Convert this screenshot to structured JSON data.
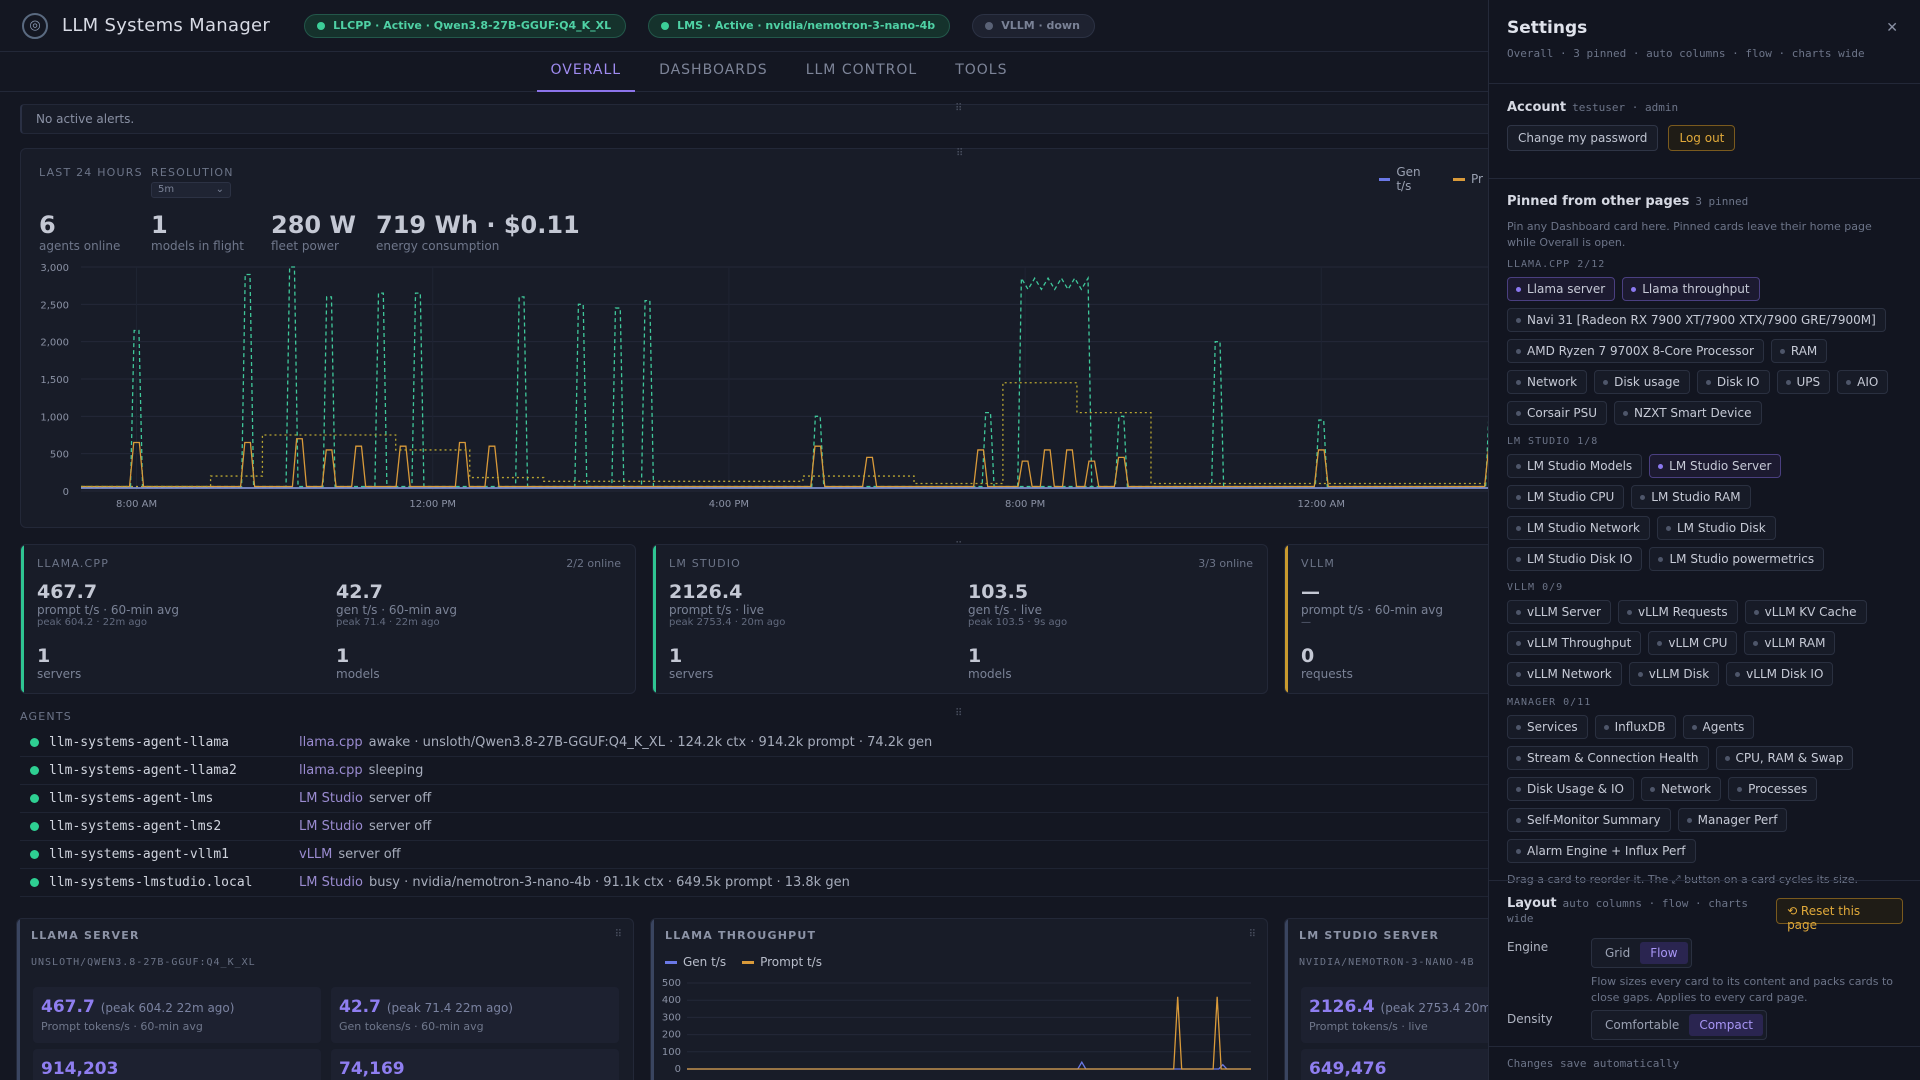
{
  "app": {
    "title": "LLM Systems Manager"
  },
  "status_pills": [
    {
      "label": "LLCPP · Active · Qwen3.8-27B-GGUF:Q4_K_XL",
      "state": "active"
    },
    {
      "label": "LMS · Active · nvidia/nemotron-3-nano-4b",
      "state": "active"
    },
    {
      "label": "VLLM · down",
      "state": "down"
    }
  ],
  "tabs": [
    "OVERALL",
    "DASHBOARDS",
    "LLM CONTROL",
    "TOOLS"
  ],
  "alerts": {
    "text": "No active alerts."
  },
  "overview": {
    "range_label": "LAST 24 HOURS",
    "resolution_label": "RESOLUTION",
    "resolution_value": "5m",
    "stats": [
      {
        "value": "6",
        "label": "agents online"
      },
      {
        "value": "1",
        "label": "models in flight"
      },
      {
        "value": "280 W",
        "label": "fleet power"
      },
      {
        "value": "719 Wh · $0.11",
        "label": "energy consumption"
      }
    ],
    "legend": [
      "Gen t/s",
      "Pr"
    ]
  },
  "chart_data": [
    {
      "type": "line",
      "title": "",
      "xlabel": "",
      "ylabel": "",
      "ylim": [
        0,
        3000
      ],
      "yticks": [
        "0",
        "500",
        "1,000",
        "1,500",
        "2,000",
        "2,500",
        "3,000"
      ],
      "xticks": [
        "8:00 AM",
        "12:00 PM",
        "4:00 PM",
        "8:00 PM",
        "12:00 AM"
      ],
      "xtick_hours": [
        8,
        12,
        16,
        20,
        24
      ],
      "x_range_hours": [
        7.25,
        26.4
      ],
      "grid": true,
      "series": [
        {
          "name": "Gen t/s",
          "color": "#3fc79a",
          "style": "dashed",
          "spikes": [
            [
              8.0,
              2150
            ],
            [
              9.5,
              2900
            ],
            [
              10.1,
              3000
            ],
            [
              10.6,
              2600
            ],
            [
              11.3,
              2650
            ],
            [
              11.8,
              2650
            ],
            [
              13.2,
              2600
            ],
            [
              14.0,
              2500
            ],
            [
              14.5,
              2450
            ],
            [
              14.9,
              2550
            ],
            [
              17.2,
              1000
            ],
            [
              19.5,
              1050
            ],
            [
              21.3,
              1000
            ],
            [
              22.6,
              2000
            ],
            [
              24.0,
              950
            ],
            [
              26.3,
              1100
            ]
          ],
          "plateau": {
            "start": 19.9,
            "end": 20.9,
            "level": 2850
          }
        },
        {
          "name": "Prompt t/s",
          "color": "#d99a3a",
          "style": "solid",
          "spikes": [
            [
              8.0,
              650
            ],
            [
              9.5,
              650
            ],
            [
              10.2,
              700
            ],
            [
              10.6,
              550
            ],
            [
              11.0,
              600
            ],
            [
              11.6,
              600
            ],
            [
              12.4,
              650
            ],
            [
              12.8,
              600
            ],
            [
              17.2,
              600
            ],
            [
              17.9,
              450
            ],
            [
              19.4,
              550
            ],
            [
              20.0,
              400
            ],
            [
              20.3,
              550
            ],
            [
              20.6,
              550
            ],
            [
              20.9,
              400
            ],
            [
              21.3,
              450
            ],
            [
              24.0,
              550
            ],
            [
              26.3,
              600
            ]
          ]
        },
        {
          "name": "Power",
          "color": "#b7a431",
          "style": "dotted",
          "steps": [
            [
              7.25,
              60
            ],
            [
              9.0,
              60
            ],
            [
              9.0,
              200
            ],
            [
              9.7,
              200
            ],
            [
              9.7,
              750
            ],
            [
              11.5,
              750
            ],
            [
              11.5,
              550
            ],
            [
              12.5,
              550
            ],
            [
              12.5,
              180
            ],
            [
              13.5,
              180
            ],
            [
              13.5,
              130
            ],
            [
              17.0,
              130
            ],
            [
              17.0,
              200
            ],
            [
              18.5,
              200
            ],
            [
              18.5,
              100
            ],
            [
              19.7,
              100
            ],
            [
              19.7,
              1450
            ],
            [
              20.7,
              1450
            ],
            [
              20.7,
              1050
            ],
            [
              21.7,
              1050
            ],
            [
              21.7,
              100
            ],
            [
              26.4,
              100
            ]
          ]
        },
        {
          "name": "Base",
          "color": "#8fa2e8",
          "style": "solid",
          "level": 40
        }
      ]
    },
    {
      "type": "line",
      "title": "",
      "ylim": [
        0,
        500
      ],
      "yticks": [
        "0",
        "100",
        "200",
        "300",
        "400",
        "500"
      ],
      "series": [
        {
          "name": "Gen t/s",
          "color": "#6a78e6",
          "spikes": [
            [
              0.7,
              40
            ],
            [
              0.95,
              25
            ]
          ]
        },
        {
          "name": "Prompt t/s",
          "color": "#d99a3a",
          "spikes": [
            [
              0.87,
              420
            ],
            [
              0.94,
              420
            ]
          ]
        }
      ]
    }
  ],
  "services": [
    {
      "name": "LLAMA.CPP",
      "online": "2/2 online",
      "color": "#2fc592",
      "m1": {
        "value": "467.7",
        "label": "prompt t/s · 60-min avg",
        "peak": "peak 604.2 · 22m ago"
      },
      "m2": {
        "value": "42.7",
        "label": "gen t/s · 60-min avg",
        "peak": "peak 71.4 · 22m ago"
      },
      "c1": {
        "value": "1",
        "label": "servers"
      },
      "c2": {
        "value": "1",
        "label": "models"
      }
    },
    {
      "name": "LM STUDIO",
      "online": "3/3 online",
      "color": "#2fc592",
      "m1": {
        "value": "2126.4",
        "label": "prompt t/s · live",
        "peak": "peak 2753.4 · 20m ago"
      },
      "m2": {
        "value": "103.5",
        "label": "gen t/s · live",
        "peak": "peak 103.5 · 9s ago"
      },
      "c1": {
        "value": "1",
        "label": "servers"
      },
      "c2": {
        "value": "1",
        "label": "models"
      }
    },
    {
      "name": "VLLM",
      "online": "",
      "color": "#c99a2e",
      "m1": {
        "value": "—",
        "label": "prompt t/s · 60-min avg",
        "peak": "—"
      },
      "c1": {
        "value": "0",
        "label": "requests"
      }
    }
  ],
  "agents_label": "AGENTS",
  "agents": [
    {
      "name": "llm-systems-agent-llama",
      "svc": "llama.cpp",
      "detail": "awake · unsloth/Qwen3.8-27B-GGUF:Q4_K_XL · 124.2k ctx · 914.2k prompt · 74.2k gen"
    },
    {
      "name": "llm-systems-agent-llama2",
      "svc": "llama.cpp",
      "detail": "sleeping"
    },
    {
      "name": "llm-systems-agent-lms",
      "svc": "LM Studio",
      "detail": "server off"
    },
    {
      "name": "llm-systems-agent-lms2",
      "svc": "LM Studio",
      "detail": "server off"
    },
    {
      "name": "llm-systems-agent-vllm1",
      "svc": "vLLM",
      "detail": "server off"
    },
    {
      "name": "llm-systems-lmstudio.local",
      "svc": "LM Studio",
      "detail": "busy · nvidia/nemotron-3-nano-4b · 91.1k ctx · 649.5k prompt · 13.8k gen"
    }
  ],
  "bottom": {
    "llama_server": {
      "title": "LLAMA SERVER",
      "model": "UNSLOTH/QWEN3.8-27B-GGUF:Q4_K_XL",
      "t1": {
        "value": "467.7",
        "extra": "(peak 604.2 22m ago)",
        "label": "Prompt tokens/s · 60-min avg"
      },
      "t2": {
        "value": "42.7",
        "extra": "(peak 71.4 22m ago)",
        "label": "Gen tokens/s · 60-min avg"
      },
      "t3": "914,203",
      "t4": "74,169"
    },
    "llama_throughput": {
      "title": "LLAMA THROUGHPUT",
      "legend": [
        "Gen t/s",
        "Prompt t/s"
      ]
    },
    "lms_server": {
      "title": "LM STUDIO SERVER",
      "model": "NVIDIA/NEMOTRON-3-NANO-4B",
      "t1": {
        "value": "2126.4",
        "extra": "(peak 2753.4 20m ago)",
        "label": "Prompt tokens/s · live"
      },
      "t3": "649,476"
    }
  },
  "settings": {
    "title": "Settings",
    "subtitle": "Overall · 3 pinned · auto columns · flow · charts wide",
    "account_label": "Account",
    "account_user": "testuser · admin",
    "change_pw": "Change my password",
    "logout": "Log out",
    "pinned_title": "Pinned from other pages",
    "pinned_count": "3 pinned",
    "pinned_note": "Pin any Dashboard card here. Pinned cards leave their home page while Overall is open.",
    "groups": [
      {
        "label": "LLAMA.CPP  2/12",
        "chips": [
          {
            "t": "Llama server",
            "p": true
          },
          {
            "t": "Llama throughput",
            "p": true
          },
          {
            "t": "Navi 31 [Radeon RX 7900 XT/7900 XTX/7900 GRE/7900M]"
          },
          {
            "t": "AMD Ryzen 7 9700X 8-Core Processor"
          },
          {
            "t": "RAM"
          },
          {
            "t": "Network"
          },
          {
            "t": "Disk usage"
          },
          {
            "t": "Disk IO"
          },
          {
            "t": "UPS"
          },
          {
            "t": "AIO"
          },
          {
            "t": "Corsair PSU"
          },
          {
            "t": "NZXT Smart Device"
          }
        ]
      },
      {
        "label": "LM STUDIO  1/8",
        "chips": [
          {
            "t": "LM Studio Models"
          },
          {
            "t": "LM Studio Server",
            "p": true
          },
          {
            "t": "LM Studio CPU"
          },
          {
            "t": "LM Studio RAM"
          },
          {
            "t": "LM Studio Network"
          },
          {
            "t": "LM Studio Disk"
          },
          {
            "t": "LM Studio Disk IO"
          },
          {
            "t": "LM Studio powermetrics"
          }
        ]
      },
      {
        "label": "VLLM  0/9",
        "chips": [
          {
            "t": "vLLM Server"
          },
          {
            "t": "vLLM Requests"
          },
          {
            "t": "vLLM KV Cache"
          },
          {
            "t": "vLLM Throughput"
          },
          {
            "t": "vLLM CPU"
          },
          {
            "t": "vLLM RAM"
          },
          {
            "t": "vLLM Network"
          },
          {
            "t": "vLLM Disk"
          },
          {
            "t": "vLLM Disk IO"
          }
        ]
      },
      {
        "label": "MANAGER  0/11",
        "chips": [
          {
            "t": "Services"
          },
          {
            "t": "InfluxDB"
          },
          {
            "t": "Agents"
          },
          {
            "t": "Stream & Connection Health"
          },
          {
            "t": "CPU, RAM & Swap"
          },
          {
            "t": "Disk Usage & IO"
          },
          {
            "t": "Network"
          },
          {
            "t": "Processes"
          },
          {
            "t": "Self-Monitor Summary"
          },
          {
            "t": "Manager Perf"
          },
          {
            "t": "Alarm Engine + Influx Perf"
          }
        ]
      }
    ],
    "drag_note": "Drag a card to reorder it. The ⤢ button on a card cycles its size.",
    "layout_label": "Layout",
    "layout_meta": "auto columns · flow · charts wide",
    "reset": "⟲ Reset this page",
    "engine_label": "Engine",
    "engine_opts": [
      "Grid",
      "Flow"
    ],
    "engine_note": "Flow sizes every card to its content and packs cards to close gaps. Applies to every card page.",
    "density_label": "Density",
    "density_opts": [
      "Comfortable",
      "Compact"
    ],
    "footer": "Changes save automatically"
  }
}
